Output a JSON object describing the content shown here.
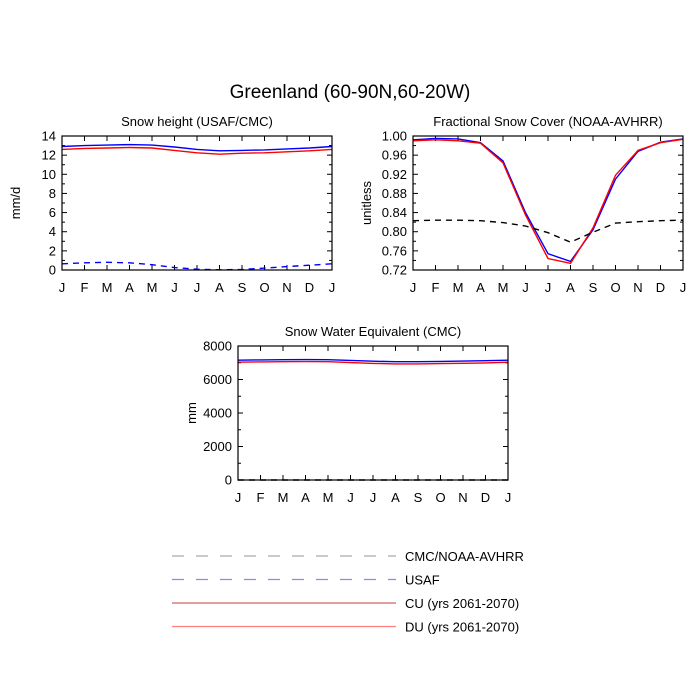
{
  "title": "Greenland (60-90N,60-20W)",
  "colors": {
    "cmc_noaa": "#000000",
    "usaf": "#0000ff",
    "cu": "#0000ff",
    "du": "#ff0000"
  },
  "legend": {
    "placement": "bottom",
    "items": [
      {
        "label": "CMC/NOAA-AVHRR",
        "style": "dashed",
        "color": "#aaaaaa"
      },
      {
        "label": "USAF",
        "style": "dashed",
        "color": "#8888ff"
      },
      {
        "label": "CU (yrs 2061-2070)",
        "style": "solid",
        "color": "#cc6666"
      },
      {
        "label": "DU (yrs 2061-2070)",
        "style": "solid",
        "color": "#ff8080"
      }
    ]
  },
  "chart_data": [
    {
      "type": "line",
      "title": "Snow height (USAF/CMC)",
      "xlabel": "",
      "ylabel": "mm/d",
      "ylim": [
        0,
        14
      ],
      "yticks": [
        "0",
        "2",
        "4",
        "6",
        "8",
        "10",
        "12",
        "14"
      ],
      "categories": [
        "J",
        "F",
        "M",
        "A",
        "M",
        "J",
        "J",
        "A",
        "S",
        "O",
        "N",
        "D",
        "J"
      ],
      "series": [
        {
          "key": "cu",
          "style": "solid",
          "values": [
            12.9,
            13.0,
            13.05,
            13.1,
            13.05,
            12.85,
            12.6,
            12.45,
            12.5,
            12.55,
            12.65,
            12.75,
            12.9
          ]
        },
        {
          "key": "du",
          "style": "solid",
          "values": [
            12.6,
            12.7,
            12.75,
            12.8,
            12.75,
            12.5,
            12.25,
            12.1,
            12.2,
            12.25,
            12.35,
            12.45,
            12.6
          ]
        },
        {
          "key": "usaf",
          "style": "dashed",
          "values": [
            0.65,
            0.75,
            0.8,
            0.75,
            0.55,
            0.25,
            0.08,
            0.02,
            0.05,
            0.2,
            0.35,
            0.5,
            0.65
          ]
        }
      ]
    },
    {
      "type": "line",
      "title": "Fractional Snow Cover (NOAA-AVHRR)",
      "xlabel": "",
      "ylabel": "unitless",
      "ylim": [
        0.72,
        1.0
      ],
      "yticks": [
        "0.72",
        "0.76",
        "0.80",
        "0.84",
        "0.88",
        "0.92",
        "0.96",
        "1.00"
      ],
      "categories": [
        "J",
        "F",
        "M",
        "A",
        "M",
        "J",
        "J",
        "A",
        "S",
        "O",
        "N",
        "D",
        "J"
      ],
      "series": [
        {
          "key": "cu",
          "style": "solid",
          "values": [
            0.992,
            0.995,
            0.994,
            0.986,
            0.948,
            0.84,
            0.754,
            0.738,
            0.804,
            0.91,
            0.968,
            0.987,
            0.994
          ]
        },
        {
          "key": "du",
          "style": "solid",
          "values": [
            0.99,
            0.992,
            0.99,
            0.985,
            0.944,
            0.835,
            0.744,
            0.734,
            0.808,
            0.918,
            0.97,
            0.986,
            0.993
          ]
        },
        {
          "key": "cmc_noaa",
          "style": "dashed",
          "values": [
            0.823,
            0.824,
            0.824,
            0.823,
            0.819,
            0.812,
            0.798,
            0.778,
            0.799,
            0.818,
            0.821,
            0.823,
            0.824
          ]
        }
      ]
    },
    {
      "type": "line",
      "title": "Snow Water Equivalent (CMC)",
      "xlabel": "",
      "ylabel": "mm",
      "ylim": [
        0,
        8000
      ],
      "yticks": [
        "0",
        "2000",
        "4000",
        "6000",
        "8000"
      ],
      "categories": [
        "J",
        "F",
        "M",
        "A",
        "M",
        "J",
        "J",
        "A",
        "S",
        "O",
        "N",
        "D",
        "J"
      ],
      "series": [
        {
          "key": "cu",
          "style": "solid",
          "values": [
            7150,
            7170,
            7180,
            7190,
            7180,
            7140,
            7090,
            7060,
            7060,
            7080,
            7100,
            7120,
            7150
          ]
        },
        {
          "key": "du",
          "style": "solid",
          "values": [
            7030,
            7050,
            7060,
            7070,
            7060,
            7010,
            6960,
            6930,
            6930,
            6950,
            6970,
            6990,
            7030
          ]
        },
        {
          "key": "cmc_noaa",
          "style": "dashed",
          "values": [
            0,
            0,
            0,
            0,
            0,
            0,
            0,
            0,
            0,
            0,
            0,
            0,
            0
          ]
        }
      ]
    }
  ]
}
